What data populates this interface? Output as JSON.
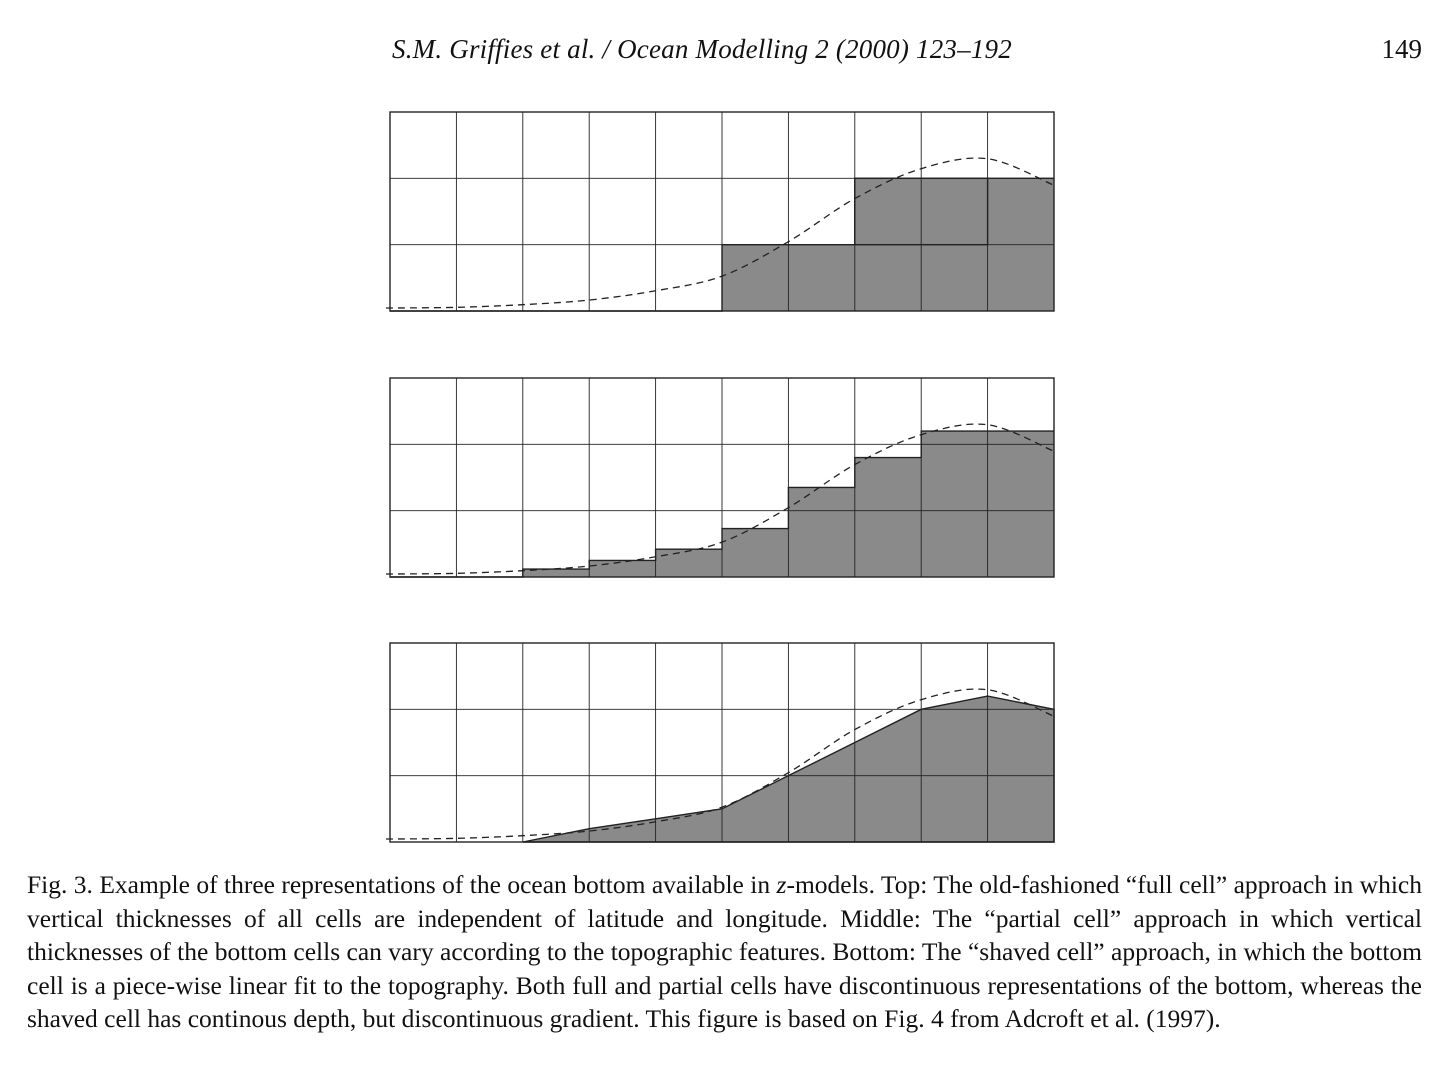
{
  "header": {
    "journal_ref": "S.M. Griffies et al. / Ocean Modelling 2 (2000) 123–192",
    "page_number": "149"
  },
  "figure": {
    "panels": [
      {
        "name": "full-cell",
        "columns": 10,
        "rows": 3,
        "bottom_fill": [
          0,
          0,
          0,
          0,
          0,
          1,
          1,
          2,
          2,
          2
        ],
        "topography": [
          0.0,
          0.01,
          0.05,
          0.12,
          0.26,
          0.48,
          1.0,
          1.65,
          2.1,
          2.25,
          1.85
        ]
      },
      {
        "name": "partial-cell",
        "columns": 10,
        "rows": 3,
        "bottom_fill": [
          0,
          0,
          0.12,
          0.25,
          0.42,
          0.73,
          1.35,
          1.8,
          2.2,
          2.2
        ],
        "topography": [
          0.0,
          0.01,
          0.05,
          0.12,
          0.26,
          0.48,
          1.0,
          1.65,
          2.1,
          2.25,
          1.85
        ]
      },
      {
        "name": "shaved-cell",
        "columns": 10,
        "rows": 3,
        "bottom_profile": [
          null,
          null,
          0.0,
          0.2,
          0.35,
          0.5,
          1.0,
          1.5,
          2.0,
          2.2,
          2.0
        ],
        "topography": [
          0.0,
          0.01,
          0.05,
          0.12,
          0.26,
          0.48,
          1.0,
          1.65,
          2.1,
          2.25,
          1.85
        ]
      }
    ],
    "fill_color": "#8a8a8a",
    "line_color": "#222222"
  },
  "caption": {
    "label": "Fig.  3.",
    "parts": [
      " Example of three representations of the ocean bottom available in ",
      "z",
      "-models. Top: The old-fashioned “full cell” approach in which vertical thicknesses of all cells are independent of latitude and longitude. Middle: The “partial cell” approach in which vertical thicknesses of the bottom cells can vary according to the topographic features. Bottom: The “shaved cell” approach, in which the bottom cell is a piece-wise linear fit to the topography. Both full and partial cells have discontinuous representations of the bottom, whereas the shaved cell has continous depth, but discontinuous gradient. This figure is based on Fig. 4 from Adcroft et al. (1997)."
    ]
  }
}
